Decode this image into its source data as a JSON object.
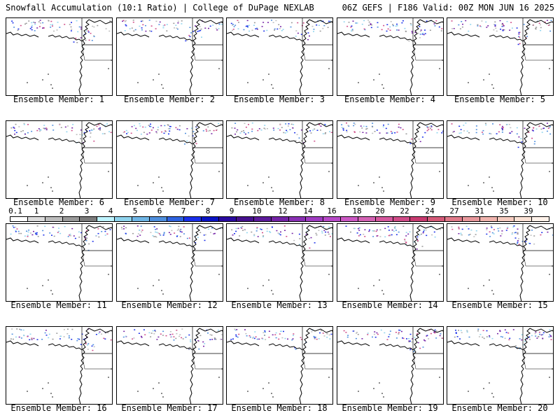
{
  "header": {
    "left": "Snowfall Accumulation (10:1 Ratio) | College of DuPage NEXLAB",
    "right": "06Z GEFS | F186 Valid: 00Z MON JUN 16 2025"
  },
  "panels": [
    {
      "label": "Ensemble Member: 1"
    },
    {
      "label": "Ensemble Member: 2"
    },
    {
      "label": "Ensemble Member: 3"
    },
    {
      "label": "Ensemble Member: 4"
    },
    {
      "label": "Ensemble Member: 5"
    },
    {
      "label": "Ensemble Member: 6"
    },
    {
      "label": "Ensemble Member: 7"
    },
    {
      "label": "Ensemble Member: 8"
    },
    {
      "label": "Ensemble Member: 9"
    },
    {
      "label": "Ensemble Member: 10"
    },
    {
      "label": "Ensemble Member: 11"
    },
    {
      "label": "Ensemble Member: 12"
    },
    {
      "label": "Ensemble Member: 13"
    },
    {
      "label": "Ensemble Member: 14"
    },
    {
      "label": "Ensemble Member: 15"
    },
    {
      "label": "Ensemble Member: 16"
    },
    {
      "label": "Ensemble Member: 17"
    },
    {
      "label": "Ensemble Member: 18"
    },
    {
      "label": "Ensemble Member: 19"
    },
    {
      "label": "Ensemble Member: 20"
    }
  ],
  "colorbar": {
    "labels": [
      "0.1",
      "1",
      "2",
      "3",
      "4",
      "5",
      "6",
      "7",
      "8",
      "9",
      "10",
      "12",
      "14",
      "16",
      "18",
      "20",
      "22",
      "24",
      "27",
      "31",
      "35",
      "39"
    ],
    "colors": [
      "#ffffff",
      "#dcdcdc",
      "#bdbdbd",
      "#9a9a9a",
      "#7c7c7c",
      "#bff4ff",
      "#8fd4ee",
      "#6fb6e6",
      "#4e8fde",
      "#2f63e0",
      "#1a2fea",
      "#0a13c4",
      "#2a0aa0",
      "#46108e",
      "#5c1a9a",
      "#7423a6",
      "#8a30b4",
      "#a03cc2",
      "#b84ac8",
      "#cc58c4",
      "#d462b4",
      "#d6589e",
      "#d04c88",
      "#c83a70",
      "#d45a78",
      "#e07a8a",
      "#e8989c",
      "#f0b4ae",
      "#f6ccc0",
      "#fbe2d6",
      "#fff2ea"
    ]
  }
}
